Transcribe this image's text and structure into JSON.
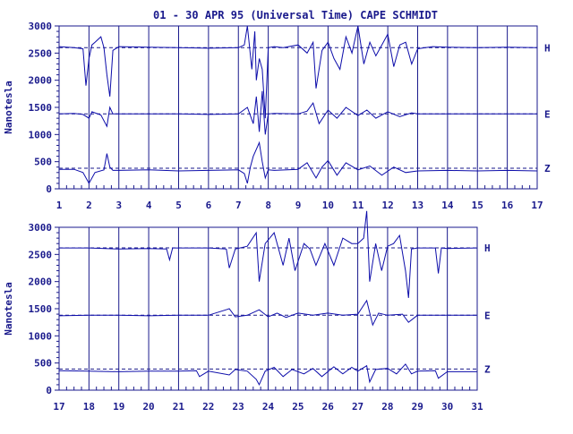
{
  "chart_data": {
    "type": "line",
    "title": "01 - 30 APR 95 (Universal Time) CAPE SCHMIDT",
    "ylabel": "Nanotesla",
    "components": [
      "H",
      "E",
      "Z"
    ],
    "ylim": [
      0,
      3000
    ],
    "yticks": [
      0,
      500,
      1000,
      1500,
      2000,
      2500,
      3000
    ],
    "panels": [
      {
        "xlim": [
          1,
          17
        ],
        "xticks": [
          1,
          2,
          3,
          4,
          5,
          6,
          7,
          8,
          9,
          10,
          11,
          12,
          13,
          14,
          15,
          16,
          17
        ],
        "series": [
          {
            "name": "H",
            "baseline": 2600,
            "x": [
              1.0,
              1.5,
              1.8,
              1.9,
              2.0,
              2.1,
              2.2,
              2.4,
              2.5,
              2.6,
              2.7,
              2.8,
              3.0,
              4.0,
              5.0,
              6.0,
              7.0,
              7.2,
              7.3,
              7.45,
              7.55,
              7.6,
              7.7,
              7.8,
              7.9,
              8.0,
              8.2,
              8.5,
              9.0,
              9.3,
              9.5,
              9.6,
              9.8,
              10.0,
              10.2,
              10.4,
              10.6,
              10.8,
              11.0,
              11.2,
              11.4,
              11.6,
              11.8,
              12.0,
              12.2,
              12.4,
              12.6,
              12.8,
              13.0,
              13.5,
              14.0,
              15.0,
              16.0,
              17.0
            ],
            "y": [
              2620,
              2600,
              2580,
              1900,
              2400,
              2650,
              2700,
              2800,
              2600,
              2100,
              1700,
              2550,
              2620,
              2610,
              2600,
              2590,
              2600,
              2650,
              3000,
              2200,
              2900,
              2000,
              2400,
              2200,
              1300,
              2600,
              2620,
              2600,
              2650,
              2500,
              2700,
              1850,
              2550,
              2700,
              2400,
              2200,
              2800,
              2500,
              3000,
              2300,
              2700,
              2450,
              2650,
              2850,
              2250,
              2650,
              2700,
              2300,
              2580,
              2620,
              2610,
              2600,
              2610,
              2600
            ]
          },
          {
            "name": "E",
            "baseline": 1380,
            "x": [
              1.0,
              1.5,
              1.8,
              2.0,
              2.1,
              2.4,
              2.6,
              2.7,
              2.8,
              3.0,
              4.0,
              5.0,
              6.0,
              7.0,
              7.3,
              7.5,
              7.6,
              7.7,
              7.8,
              7.9,
              8.0,
              8.2,
              9.0,
              9.3,
              9.5,
              9.7,
              10.0,
              10.3,
              10.6,
              11.0,
              11.3,
              11.6,
              12.0,
              12.4,
              12.8,
              13.0,
              14.0,
              15.0,
              16.0,
              17.0
            ],
            "y": [
              1380,
              1390,
              1370,
              1300,
              1420,
              1360,
              1150,
              1500,
              1380,
              1380,
              1380,
              1380,
              1370,
              1380,
              1500,
              1200,
              1700,
              1050,
              1800,
              1000,
              1380,
              1390,
              1380,
              1430,
              1580,
              1200,
              1450,
              1300,
              1500,
              1350,
              1450,
              1300,
              1420,
              1330,
              1400,
              1380,
              1380,
              1380,
              1380,
              1380
            ]
          },
          {
            "name": "Z",
            "baseline": 380,
            "x": [
              1.0,
              1.5,
              1.8,
              2.0,
              2.2,
              2.5,
              2.6,
              2.7,
              2.8,
              3.0,
              4.0,
              5.0,
              6.0,
              7.0,
              7.2,
              7.3,
              7.4,
              7.5,
              7.7,
              7.8,
              7.9,
              8.0,
              8.2,
              9.0,
              9.3,
              9.6,
              9.8,
              10.0,
              10.3,
              10.6,
              11.0,
              11.4,
              11.8,
              12.2,
              12.6,
              13.0,
              14.0,
              15.0,
              16.0,
              17.0
            ],
            "y": [
              360,
              360,
              300,
              100,
              300,
              350,
              650,
              400,
              340,
              340,
              350,
              330,
              340,
              350,
              280,
              100,
              400,
              600,
              850,
              500,
              200,
              350,
              340,
              360,
              480,
              200,
              400,
              520,
              250,
              480,
              350,
              420,
              250,
              400,
              300,
              330,
              340,
              330,
              340,
              330
            ]
          }
        ]
      },
      {
        "xlim": [
          17,
          31
        ],
        "xticks": [
          17,
          18,
          19,
          20,
          21,
          22,
          23,
          24,
          25,
          26,
          27,
          28,
          29,
          30,
          31
        ],
        "series": [
          {
            "name": "H",
            "baseline": 2620,
            "x": [
              17.0,
              18.0,
              19.0,
              20.0,
              20.6,
              20.7,
              20.8,
              21.0,
              22.0,
              22.6,
              22.7,
              22.9,
              23.3,
              23.6,
              23.7,
              23.9,
              24.2,
              24.5,
              24.7,
              24.9,
              25.2,
              25.4,
              25.6,
              25.9,
              26.2,
              26.5,
              26.8,
              27.0,
              27.2,
              27.3,
              27.4,
              27.6,
              27.8,
              28.0,
              28.2,
              28.4,
              28.6,
              28.7,
              28.8,
              29.0,
              29.6,
              29.7,
              29.8,
              30.0,
              31.0
            ],
            "y": [
              2620,
              2620,
              2600,
              2610,
              2600,
              2400,
              2620,
              2620,
              2620,
              2600,
              2250,
              2600,
              2650,
              2900,
              2000,
              2700,
              2900,
              2300,
              2800,
              2200,
              2700,
              2600,
              2300,
              2700,
              2300,
              2800,
              2700,
              2700,
              2800,
              3300,
              2000,
              2700,
              2200,
              2650,
              2700,
              2850,
              2200,
              1700,
              2600,
              2620,
              2620,
              2150,
              2620,
              2610,
              2620
            ]
          },
          {
            "name": "E",
            "baseline": 1380,
            "x": [
              17.0,
              18.0,
              19.0,
              20.0,
              21.0,
              22.0,
              22.7,
              22.9,
              23.3,
              23.7,
              24.0,
              24.3,
              24.6,
              25.0,
              25.5,
              26.0,
              26.5,
              27.0,
              27.3,
              27.5,
              27.7,
              28.0,
              28.5,
              28.7,
              29.0,
              30.0,
              31.0
            ],
            "y": [
              1370,
              1380,
              1380,
              1370,
              1380,
              1380,
              1500,
              1350,
              1380,
              1480,
              1350,
              1420,
              1340,
              1420,
              1380,
              1420,
              1380,
              1400,
              1650,
              1200,
              1420,
              1380,
              1400,
              1250,
              1380,
              1380,
              1380
            ]
          },
          {
            "name": "Z",
            "baseline": 390,
            "x": [
              17.0,
              18.0,
              19.0,
              20.0,
              21.0,
              21.6,
              21.7,
              22.0,
              22.7,
              22.9,
              23.3,
              23.6,
              23.7,
              23.9,
              24.2,
              24.5,
              24.8,
              25.2,
              25.5,
              25.8,
              26.2,
              26.5,
              26.8,
              27.0,
              27.3,
              27.4,
              27.6,
              28.0,
              28.3,
              28.6,
              28.8,
              29.0,
              29.6,
              29.7,
              30.0,
              31.0
            ],
            "y": [
              360,
              350,
              340,
              350,
              350,
              360,
              250,
              350,
              280,
              380,
              350,
              200,
              100,
              350,
              420,
              250,
              380,
              300,
              400,
              250,
              430,
              300,
              420,
              350,
              450,
              150,
              380,
              400,
              300,
              480,
              300,
              350,
              360,
              220,
              340,
              340
            ]
          }
        ]
      }
    ]
  }
}
